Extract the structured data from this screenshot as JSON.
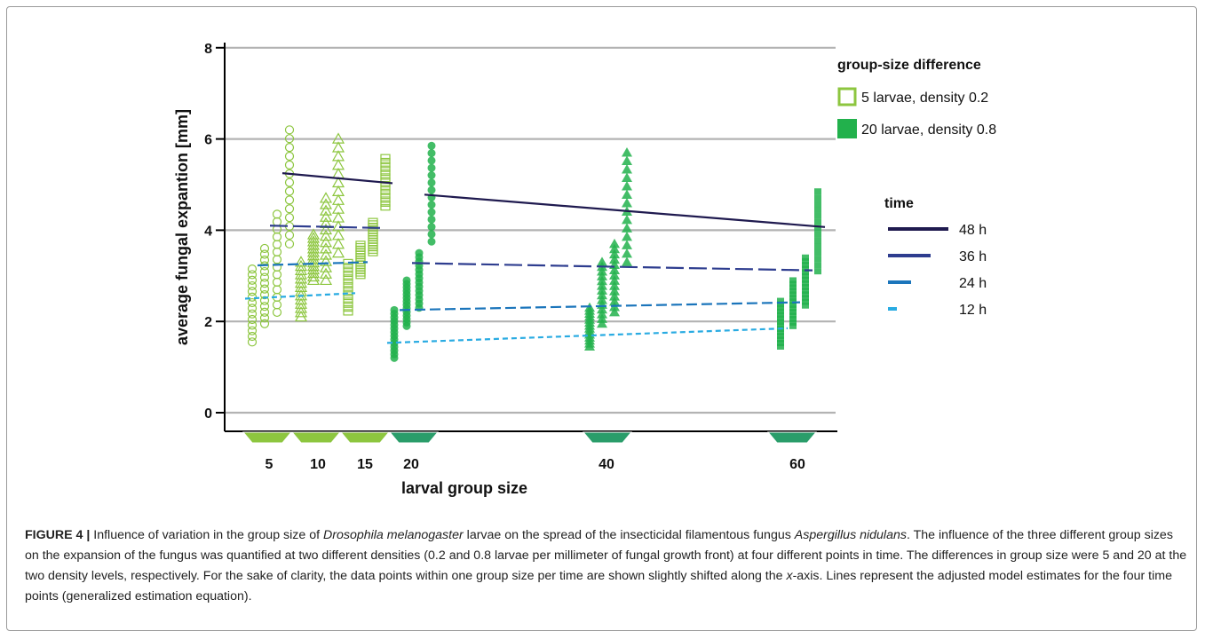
{
  "chart_data": {
    "type": "scatter",
    "xlabel": "larval group size",
    "ylabel": "average fungal expantion [mm]",
    "xticks": [
      5,
      10,
      15,
      20,
      40,
      60
    ],
    "yticks": [
      0,
      2,
      4,
      6,
      8
    ],
    "ylim": [
      0,
      8
    ],
    "grid": "horizontal",
    "legend_groups": {
      "title": "group-size difference",
      "items": [
        {
          "label": "5 larvae, density 0.2",
          "color": "#8dc63f",
          "style": "hollow"
        },
        {
          "label": "20 larvae, density 0.8",
          "color": "#22b14c",
          "style": "filled"
        }
      ]
    },
    "legend_time": {
      "title": "time",
      "items": [
        {
          "label": "48 h",
          "color": "#1f1a4f",
          "dash": "solid"
        },
        {
          "label": "36 h",
          "color": "#2e3d8f",
          "dash": "long"
        },
        {
          "label": "24 h",
          "color": "#1b75bb",
          "dash": "medium"
        },
        {
          "label": "12 h",
          "color": "#29abe2",
          "dash": "short"
        }
      ]
    },
    "groups": [
      {
        "size": 5,
        "density": "0.2",
        "marker": "circle",
        "time_ranges": {
          "12h": [
            1.55,
            3.15
          ],
          "24h": [
            1.95,
            3.6
          ],
          "36h": [
            2.2,
            4.35
          ],
          "48h": [
            3.7,
            6.2
          ]
        }
      },
      {
        "size": 10,
        "density": "0.2",
        "marker": "triangle",
        "time_ranges": {
          "12h": [
            2.1,
            3.3
          ],
          "24h": [
            2.9,
            3.9
          ],
          "36h": [
            2.9,
            4.7
          ],
          "48h": [
            3.5,
            6.0
          ]
        }
      },
      {
        "size": 15,
        "density": "0.2",
        "marker": "square",
        "time_ranges": {
          "12h": [
            2.2,
            3.3
          ],
          "24h": [
            3.0,
            3.7
          ],
          "36h": [
            3.5,
            4.2
          ],
          "48h": [
            4.5,
            5.6
          ]
        }
      },
      {
        "size": 20,
        "density": "0.8",
        "marker": "circle",
        "time_ranges": {
          "12h": [
            1.2,
            2.25
          ],
          "24h": [
            1.9,
            2.9
          ],
          "36h": [
            2.3,
            3.5
          ],
          "48h": [
            3.75,
            5.85
          ]
        }
      },
      {
        "size": 40,
        "density": "0.8",
        "marker": "triangle",
        "time_ranges": {
          "12h": [
            1.45,
            2.3
          ],
          "24h": [
            1.95,
            3.3
          ],
          "36h": [
            2.2,
            3.7
          ],
          "48h": [
            3.3,
            5.7
          ]
        }
      },
      {
        "size": 60,
        "density": "0.8",
        "marker": "square",
        "time_ranges": {
          "12h": [
            1.45,
            2.45
          ],
          "24h": [
            1.9,
            2.9
          ],
          "36h": [
            2.35,
            3.4
          ],
          "48h": [
            3.1,
            4.85
          ]
        }
      }
    ],
    "model_lines": [
      {
        "time": "48 h",
        "density": "0.2",
        "x": [
          5,
          15
        ],
        "y": [
          5.25,
          5.03
        ]
      },
      {
        "time": "36 h",
        "density": "0.2",
        "x": [
          5,
          15
        ],
        "y": [
          4.1,
          4.05
        ]
      },
      {
        "time": "24 h",
        "density": "0.2",
        "x": [
          5,
          15
        ],
        "y": [
          3.23,
          3.3
        ]
      },
      {
        "time": "12 h",
        "density": "0.2",
        "x": [
          5,
          15
        ],
        "y": [
          2.5,
          2.62
        ]
      },
      {
        "time": "48 h",
        "density": "0.8",
        "x": [
          20,
          60
        ],
        "y": [
          4.78,
          4.07
        ]
      },
      {
        "time": "36 h",
        "density": "0.8",
        "x": [
          20,
          60
        ],
        "y": [
          3.28,
          3.12
        ]
      },
      {
        "time": "24 h",
        "density": "0.8",
        "x": [
          20,
          60
        ],
        "y": [
          2.25,
          2.42
        ]
      },
      {
        "time": "12 h",
        "density": "0.8",
        "x": [
          20,
          60
        ],
        "y": [
          1.53,
          1.85
        ]
      }
    ]
  },
  "caption": {
    "label": "FIGURE 4 |",
    "text_1": " Influence of variation in the group size of ",
    "species_1": "Drosophila melanogaster",
    "text_2": " larvae on the spread of the insecticidal filamentous fungus ",
    "species_2": "Aspergillus nidulans",
    "text_3": ". The influence of the three different group sizes on the expansion of the fungus was quantified at two different densities (0.2 and 0.8 larvae per millimeter of fungal growth front) at four different points in time. The differences in group size were 5 and 20 at the two density levels, respectively. For the sake of clarity, the data points within one group size per time are shown slightly shifted along the ",
    "axis_word": "x",
    "text_4": "-axis. Lines represent the adjusted model estimates for the four time points (generalized estimation equation)."
  }
}
